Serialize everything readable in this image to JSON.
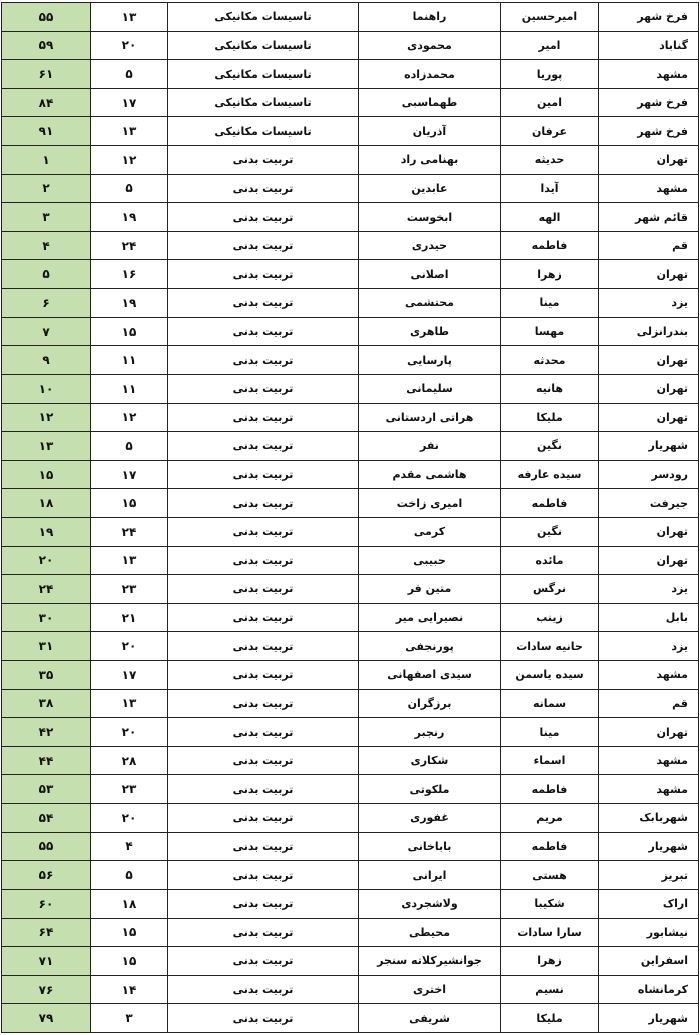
{
  "colors": {
    "rank_fill": "#c5dfae",
    "border": "#222222"
  },
  "rows": [
    {
      "rank": "۵۵",
      "num": "۱۳",
      "field": "تاسیسات مکانیکی",
      "last": "راهنما",
      "first": "امیرحسین",
      "city": "فرخ شهر"
    },
    {
      "rank": "۵۹",
      "num": "۲۰",
      "field": "تاسیسات مکانیکی",
      "last": "محمودی",
      "first": "امیر",
      "city": "گناباد"
    },
    {
      "rank": "۶۱",
      "num": "۵",
      "field": "تاسیسات مکانیکی",
      "last": "محمدزاده",
      "first": "پوریا",
      "city": "مشهد"
    },
    {
      "rank": "۸۴",
      "num": "۱۷",
      "field": "تاسیسات مکانیکی",
      "last": "طهماسبی",
      "first": "امین",
      "city": "فرخ شهر"
    },
    {
      "rank": "۹۱",
      "num": "۱۳",
      "field": "تاسیسات مکانیکی",
      "last": "آذریان",
      "first": "عرفان",
      "city": "فرخ شهر"
    },
    {
      "rank": "۱",
      "num": "۱۲",
      "field": "تربیت بدنی",
      "last": "بهنامی راد",
      "first": "حدیثه",
      "city": "تهران"
    },
    {
      "rank": "۲",
      "num": "۵",
      "field": "تربیت بدنی",
      "last": "عابدین",
      "first": "آیدا",
      "city": "مشهد"
    },
    {
      "rank": "۳",
      "num": "۱۹",
      "field": "تربیت بدنی",
      "last": "ابخوست",
      "first": "الهه",
      "city": "قائم شهر"
    },
    {
      "rank": "۴",
      "num": "۲۴",
      "field": "تربیت بدنی",
      "last": "حیدری",
      "first": "فاطمه",
      "city": "قم"
    },
    {
      "rank": "۵",
      "num": "۱۶",
      "field": "تربیت بدنی",
      "last": "اصلانی",
      "first": "زهرا",
      "city": "تهران"
    },
    {
      "rank": "۶",
      "num": "۱۹",
      "field": "تربیت بدنی",
      "last": "محتشمی",
      "first": "مینا",
      "city": "یزد"
    },
    {
      "rank": "۷",
      "num": "۱۵",
      "field": "تربیت بدنی",
      "last": "طاهری",
      "first": "مهسا",
      "city": "بندرانزلی"
    },
    {
      "rank": "۹",
      "num": "۱۱",
      "field": "تربیت بدنی",
      "last": "پارسایی",
      "first": "محدثه",
      "city": "تهران"
    },
    {
      "rank": "۱۰",
      "num": "۱۱",
      "field": "تربیت بدنی",
      "last": "سلیمانی",
      "first": "هانیه",
      "city": "تهران"
    },
    {
      "rank": "۱۲",
      "num": "۱۲",
      "field": "تربیت بدنی",
      "last": "هراتی اردستانی",
      "first": "ملیکا",
      "city": "تهران"
    },
    {
      "rank": "۱۳",
      "num": "۵",
      "field": "تربیت بدنی",
      "last": "نفر",
      "first": "نگین",
      "city": "شهریار"
    },
    {
      "rank": "۱۵",
      "num": "۱۷",
      "field": "تربیت بدنی",
      "last": "هاشمی مقدم",
      "first": "سیده عارفه",
      "city": "رودسر"
    },
    {
      "rank": "۱۸",
      "num": "۱۵",
      "field": "تربیت بدنی",
      "last": "امیری زاخت",
      "first": "فاطمه",
      "city": "جیرفت"
    },
    {
      "rank": "۱۹",
      "num": "۲۴",
      "field": "تربیت بدنی",
      "last": "کرمی",
      "first": "نگین",
      "city": "تهران"
    },
    {
      "rank": "۲۰",
      "num": "۱۳",
      "field": "تربیت بدنی",
      "last": "حبیبی",
      "first": "مائده",
      "city": "تهران"
    },
    {
      "rank": "۲۴",
      "num": "۲۳",
      "field": "تربیت بدنی",
      "last": "متین فر",
      "first": "نرگس",
      "city": "یزد"
    },
    {
      "rank": "۳۰",
      "num": "۲۱",
      "field": "تربیت بدنی",
      "last": "نصیرایی میر",
      "first": "زینب",
      "city": "بابل"
    },
    {
      "rank": "۳۱",
      "num": "۲۰",
      "field": "تربیت بدنی",
      "last": "پورنجفی",
      "first": "حانیه سادات",
      "city": "یزد"
    },
    {
      "rank": "۳۵",
      "num": "۱۷",
      "field": "تربیت بدنی",
      "last": "سیدی اصفهانی",
      "first": "سیده یاسمن",
      "city": "مشهد"
    },
    {
      "rank": "۳۸",
      "num": "۱۳",
      "field": "تربیت بدنی",
      "last": "برزگران",
      "first": "سمانه",
      "city": "قم"
    },
    {
      "rank": "۴۲",
      "num": "۲۰",
      "field": "تربیت بدنی",
      "last": "رنجبر",
      "first": "مینا",
      "city": "تهران"
    },
    {
      "rank": "۴۴",
      "num": "۲۸",
      "field": "تربیت بدنی",
      "last": "شکاری",
      "first": "اسماء",
      "city": "مشهد"
    },
    {
      "rank": "۵۳",
      "num": "۲۳",
      "field": "تربیت بدنی",
      "last": "ملکوتی",
      "first": "فاطمه",
      "city": "مشهد"
    },
    {
      "rank": "۵۴",
      "num": "۲۰",
      "field": "تربیت بدنی",
      "last": "غفوری",
      "first": "مریم",
      "city": "شهربابک"
    },
    {
      "rank": "۵۵",
      "num": "۴",
      "field": "تربیت بدنی",
      "last": "باباخانی",
      "first": "فاطمه",
      "city": "شهریار"
    },
    {
      "rank": "۵۶",
      "num": "۵",
      "field": "تربیت بدنی",
      "last": "ایرانی",
      "first": "هستی",
      "city": "تبریز"
    },
    {
      "rank": "۶۰",
      "num": "۱۸",
      "field": "تربیت بدنی",
      "last": "ولاشجردی",
      "first": "شکیبا",
      "city": "اراک"
    },
    {
      "rank": "۶۴",
      "num": "۱۵",
      "field": "تربیت بدنی",
      "last": "محیطی",
      "first": "سارا سادات",
      "city": "نیشابور"
    },
    {
      "rank": "۷۱",
      "num": "۱۵",
      "field": "تربیت بدنی",
      "last": "جوانشیرکلاته سنجر",
      "first": "زهرا",
      "city": "اسفراین"
    },
    {
      "rank": "۷۶",
      "num": "۱۴",
      "field": "تربیت بدنی",
      "last": "اختری",
      "first": "نسیم",
      "city": "کرمانشاه"
    },
    {
      "rank": "۷۹",
      "num": "۳",
      "field": "تربیت بدنی",
      "last": "شریفی",
      "first": "ملیکا",
      "city": "شهریار"
    }
  ]
}
